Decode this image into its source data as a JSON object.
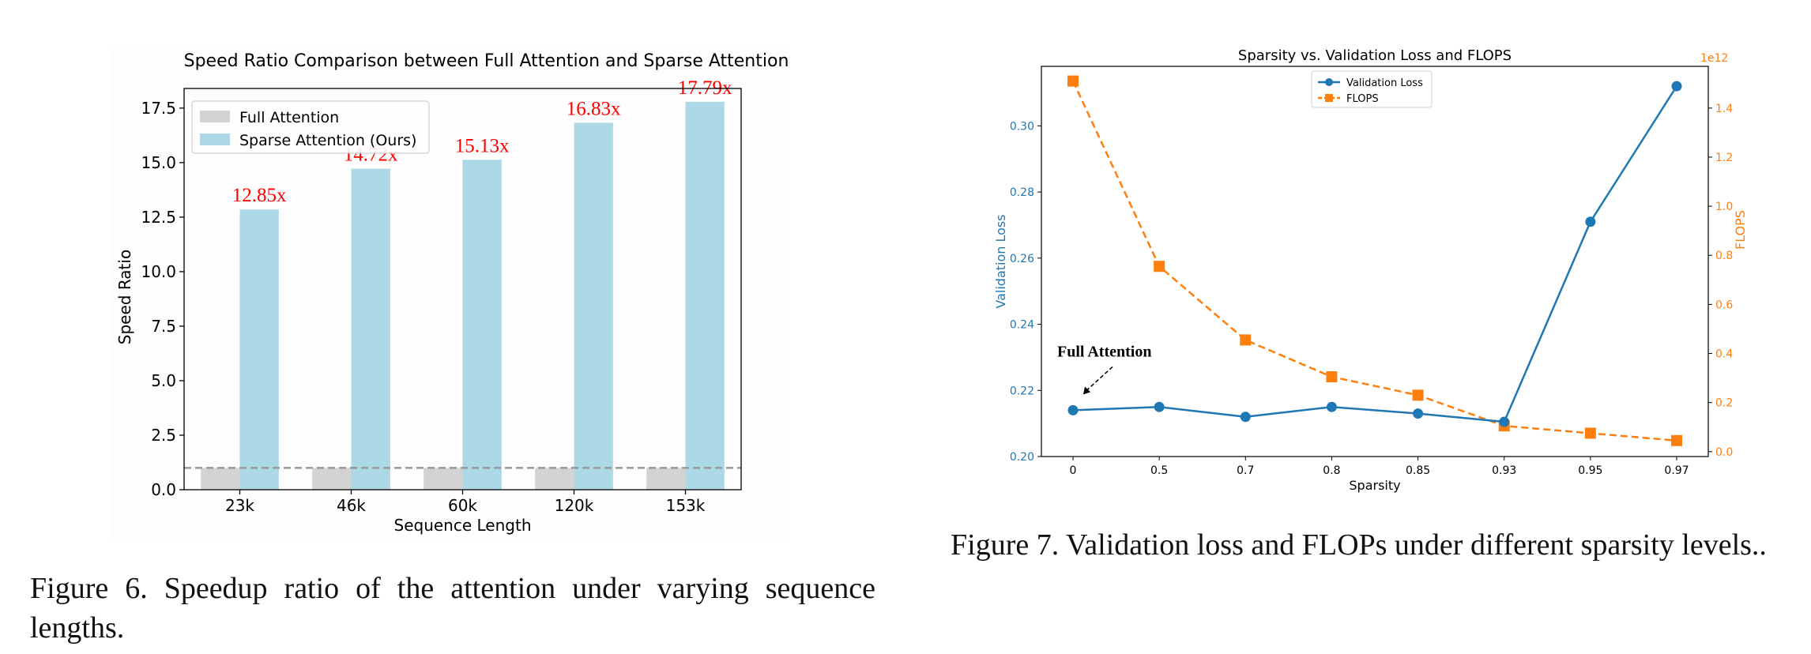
{
  "figure6": {
    "caption": "Figure 6.  Speedup ratio of the attention under varying sequence lengths.",
    "chart_data": {
      "type": "bar",
      "title": "Speed Ratio Comparison between Full Attention and Sparse Attention",
      "xlabel": "Sequence Length",
      "ylabel": "Speed Ratio",
      "categories": [
        "23k",
        "46k",
        "60k",
        "120k",
        "153k"
      ],
      "series": [
        {
          "name": "Full Attention",
          "values": [
            1,
            1,
            1,
            1,
            1
          ],
          "color": "#d3d3d3"
        },
        {
          "name": "Sparse Attention (Ours)",
          "values": [
            12.85,
            14.72,
            15.13,
            16.83,
            17.79
          ],
          "color": "#add8e6"
        }
      ],
      "data_labels": [
        "12.85x",
        "14.72x",
        "15.13x",
        "16.83x",
        "17.79x"
      ],
      "data_label_color": "#ff0000",
      "ylim": [
        0,
        18.4
      ],
      "yticks": [
        "0.0",
        "2.5",
        "5.0",
        "7.5",
        "10.0",
        "12.5",
        "15.0",
        "17.5"
      ],
      "reference_line": {
        "y": 1,
        "style": "dashed",
        "color": "#999999"
      },
      "legend_position": "top-left",
      "grid": false
    }
  },
  "figure7": {
    "caption": "Figure 7.  Validation loss and FLOPs under different sparsity levels..",
    "chart_data": {
      "type": "line",
      "title": "Sparsity vs. Validation Loss and FLOPS",
      "xlabel": "Sparsity",
      "ylabel_left": "Validation Loss",
      "ylabel_right": "FLOPS",
      "right_axis_multiplier": "1e12",
      "categories": [
        "0",
        "0.5",
        "0.7",
        "0.8",
        "0.85",
        "0.93",
        "0.95",
        "0.97"
      ],
      "series": [
        {
          "name": "Validation Loss",
          "axis": "left",
          "marker": "circle",
          "line": "solid",
          "color": "#1f77b4",
          "values": [
            0.214,
            0.215,
            0.212,
            0.215,
            0.213,
            0.2105,
            0.271,
            0.312
          ]
        },
        {
          "name": "FLOPS",
          "axis": "right",
          "marker": "square",
          "line": "dashed",
          "color": "#ff7f0e",
          "values": [
            1.51,
            0.755,
            0.455,
            0.305,
            0.23,
            0.105,
            0.075,
            0.045
          ]
        }
      ],
      "ylim_left": [
        0.2,
        0.318
      ],
      "yticks_left": [
        "0.20",
        "0.22",
        "0.24",
        "0.26",
        "0.28",
        "0.30"
      ],
      "ylim_right": [
        -0.02,
        1.57
      ],
      "yticks_right": [
        "0.0",
        "0.2",
        "0.4",
        "0.6",
        "0.8",
        "1.0",
        "1.2",
        "1.4"
      ],
      "annotation": {
        "text": "Full Attention",
        "points_to": "0"
      },
      "legend_position": "top-center",
      "grid": false
    }
  }
}
